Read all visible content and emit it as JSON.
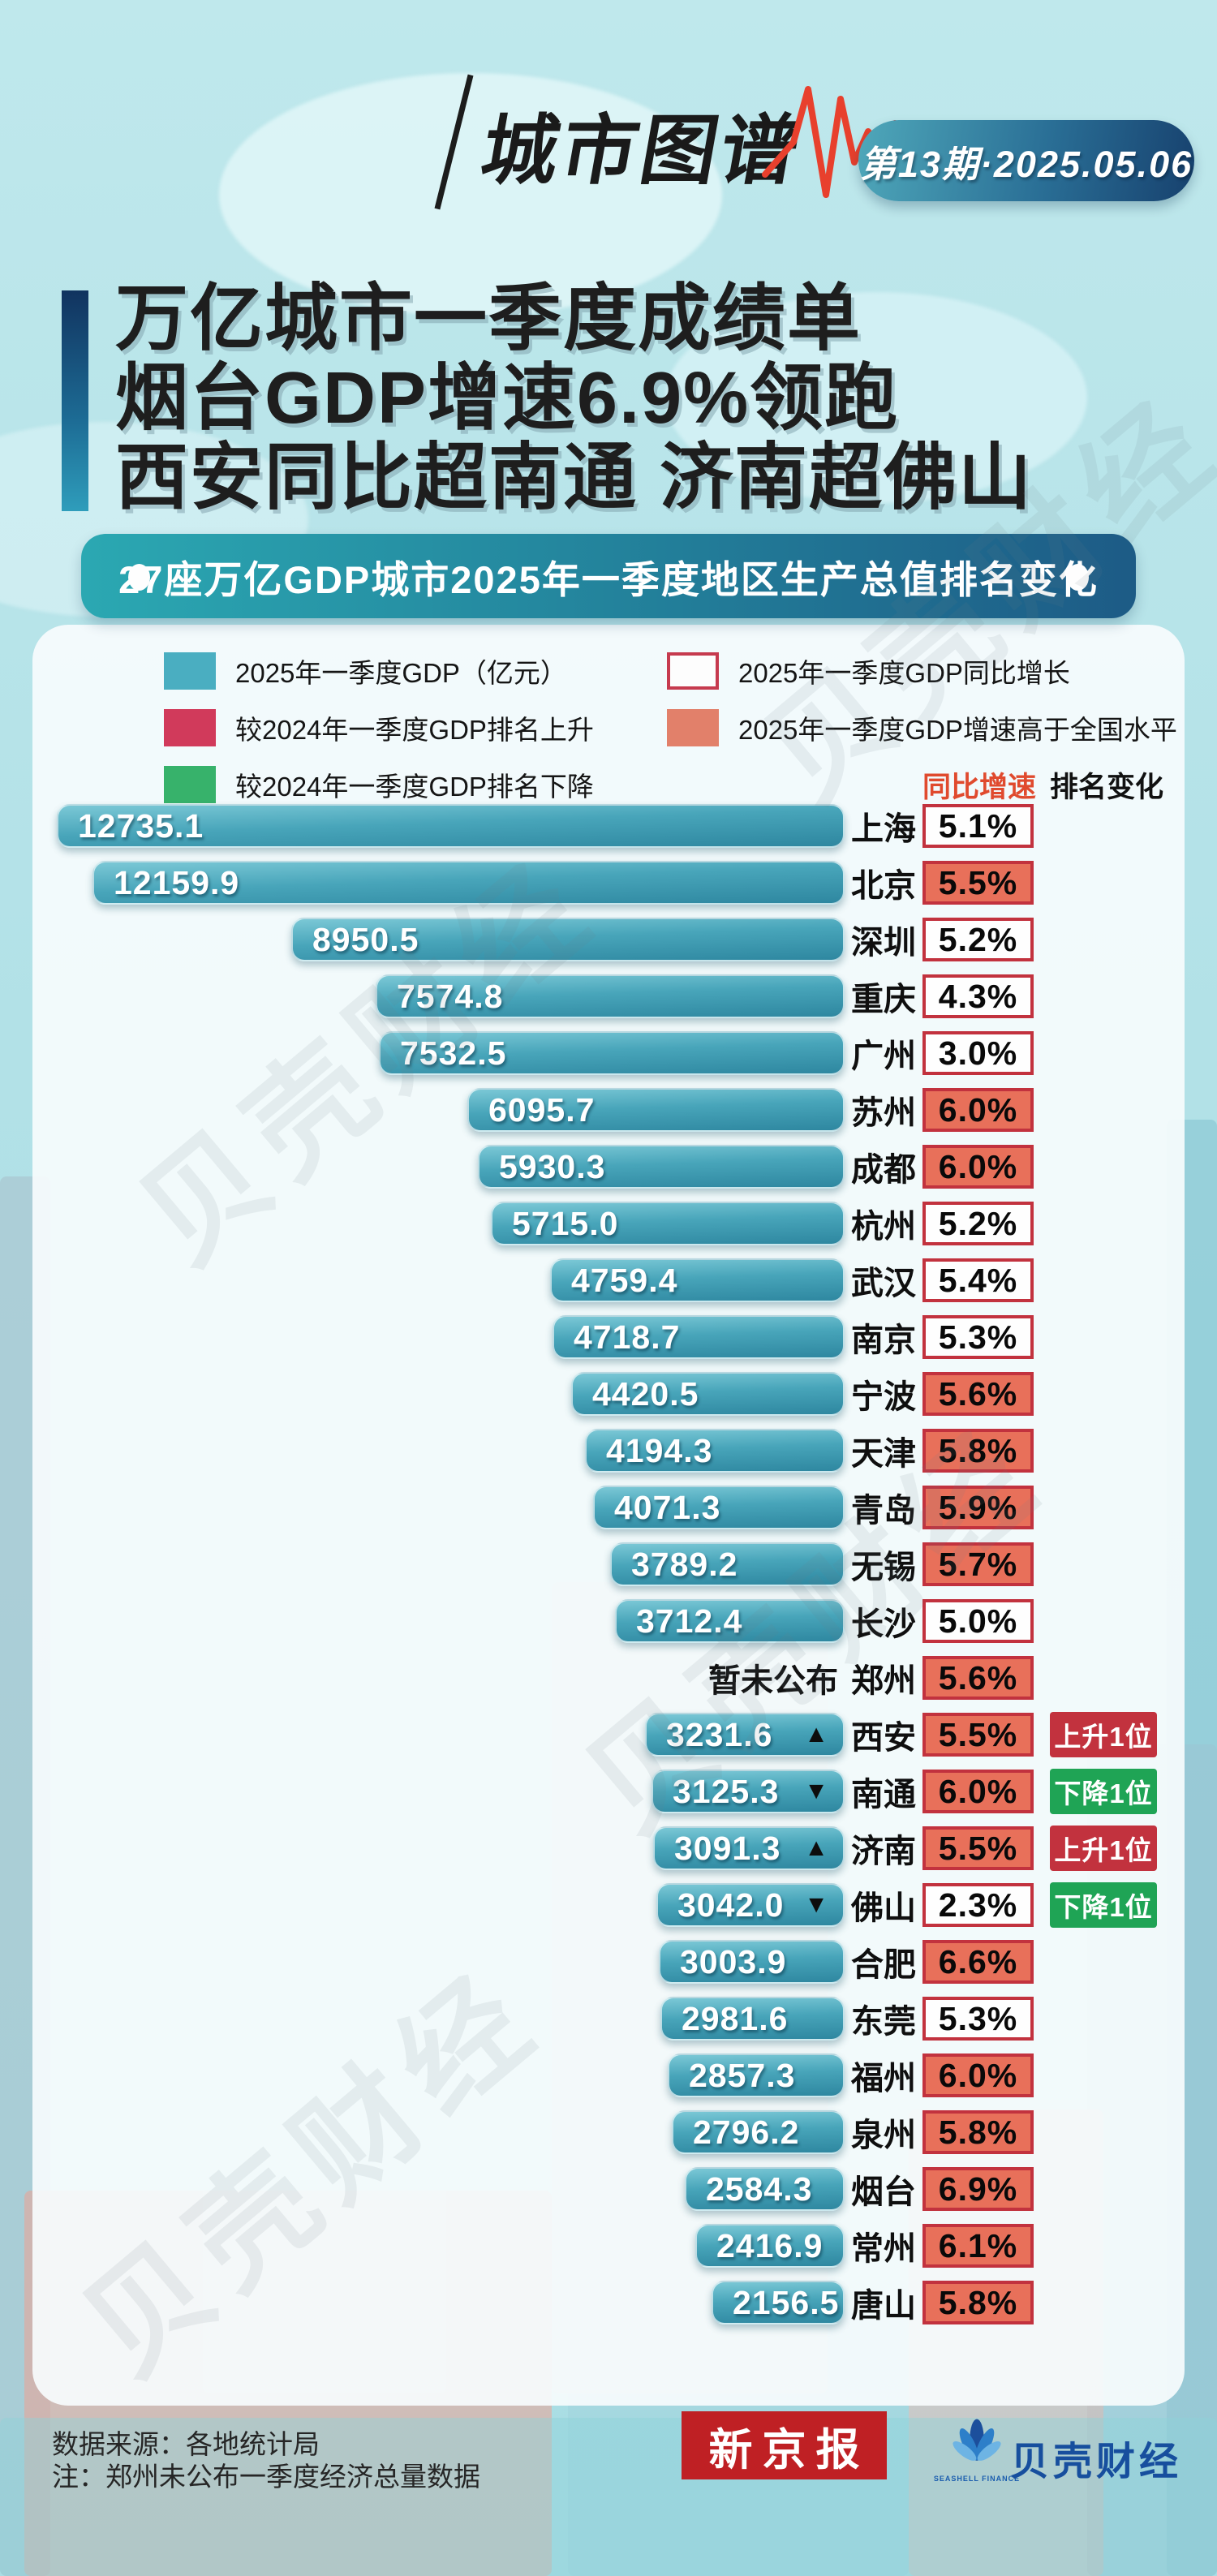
{
  "header": {
    "brand": "城市图谱",
    "issue_badge": "第13期·2025.05.06"
  },
  "title": {
    "line1": "万亿城市一季度成绩单",
    "line2": "烟台GDP增速6.9%领跑",
    "line3": "西安同比超南通 济南超佛山"
  },
  "banner": {
    "text": "27座万亿GDP城市2025年一季度地区生产总值排名变化"
  },
  "legend": {
    "items": [
      {
        "label": "2025年一季度GDP（亿元）",
        "swatch": "teal"
      },
      {
        "label": "较2024年一季度GDP排名上升",
        "swatch": "crimson"
      },
      {
        "label": "较2024年一季度GDP排名下降",
        "swatch": "green"
      },
      {
        "label": "2025年一季度GDP同比增长",
        "swatch": "outline"
      },
      {
        "label": "2025年一季度GDP增速高于全国水平",
        "swatch": "salmon"
      }
    ]
  },
  "columns": {
    "growth_header": "同比增速",
    "rank_header": "排名变化"
  },
  "chart_data": {
    "type": "bar",
    "title": "27座万亿GDP城市2025年一季度地区生产总值排名变化",
    "unit": "亿元",
    "x_max": 12735.1,
    "legend_position": "top",
    "cities": [
      {
        "city": "上海",
        "gdp": 12735.1,
        "gdp_label": "12735.1",
        "growth": "5.1%",
        "above_national": false,
        "rank_arrow": null,
        "rank_badge": null
      },
      {
        "city": "北京",
        "gdp": 12159.9,
        "gdp_label": "12159.9",
        "growth": "5.5%",
        "above_national": true,
        "rank_arrow": null,
        "rank_badge": null
      },
      {
        "city": "深圳",
        "gdp": 8950.5,
        "gdp_label": "8950.5",
        "growth": "5.2%",
        "above_national": false,
        "rank_arrow": null,
        "rank_badge": null
      },
      {
        "city": "重庆",
        "gdp": 7574.8,
        "gdp_label": "7574.8",
        "growth": "4.3%",
        "above_national": false,
        "rank_arrow": null,
        "rank_badge": null
      },
      {
        "city": "广州",
        "gdp": 7532.5,
        "gdp_label": "7532.5",
        "growth": "3.0%",
        "above_national": false,
        "rank_arrow": null,
        "rank_badge": null
      },
      {
        "city": "苏州",
        "gdp": 6095.7,
        "gdp_label": "6095.7",
        "growth": "6.0%",
        "above_national": true,
        "rank_arrow": null,
        "rank_badge": null
      },
      {
        "city": "成都",
        "gdp": 5930.3,
        "gdp_label": "5930.3",
        "growth": "6.0%",
        "above_national": true,
        "rank_arrow": null,
        "rank_badge": null
      },
      {
        "city": "杭州",
        "gdp": 5715.0,
        "gdp_label": "5715.0",
        "growth": "5.2%",
        "above_national": false,
        "rank_arrow": null,
        "rank_badge": null
      },
      {
        "city": "武汉",
        "gdp": 4759.4,
        "gdp_label": "4759.4",
        "growth": "5.4%",
        "above_national": false,
        "rank_arrow": null,
        "rank_badge": null
      },
      {
        "city": "南京",
        "gdp": 4718.7,
        "gdp_label": "4718.7",
        "growth": "5.3%",
        "above_national": false,
        "rank_arrow": null,
        "rank_badge": null
      },
      {
        "city": "宁波",
        "gdp": 4420.5,
        "gdp_label": "4420.5",
        "growth": "5.6%",
        "above_national": true,
        "rank_arrow": null,
        "rank_badge": null
      },
      {
        "city": "天津",
        "gdp": 4194.3,
        "gdp_label": "4194.3",
        "growth": "5.8%",
        "above_national": true,
        "rank_arrow": null,
        "rank_badge": null
      },
      {
        "city": "青岛",
        "gdp": 4071.3,
        "gdp_label": "4071.3",
        "growth": "5.9%",
        "above_national": true,
        "rank_arrow": null,
        "rank_badge": null
      },
      {
        "city": "无锡",
        "gdp": 3789.2,
        "gdp_label": "3789.2",
        "growth": "5.7%",
        "above_national": true,
        "rank_arrow": null,
        "rank_badge": null
      },
      {
        "city": "长沙",
        "gdp": 3712.4,
        "gdp_label": "3712.4",
        "growth": "5.0%",
        "above_national": false,
        "rank_arrow": null,
        "rank_badge": null
      },
      {
        "city": "郑州",
        "gdp": null,
        "gdp_label": "暂未公布",
        "growth": "5.6%",
        "above_national": true,
        "rank_arrow": null,
        "rank_badge": null
      },
      {
        "city": "西安",
        "gdp": 3231.6,
        "gdp_label": "3231.6",
        "growth": "5.5%",
        "above_national": true,
        "rank_arrow": "up",
        "rank_badge": "上升1位"
      },
      {
        "city": "南通",
        "gdp": 3125.3,
        "gdp_label": "3125.3",
        "growth": "6.0%",
        "above_national": true,
        "rank_arrow": "down",
        "rank_badge": "下降1位"
      },
      {
        "city": "济南",
        "gdp": 3091.3,
        "gdp_label": "3091.3",
        "growth": "5.5%",
        "above_national": true,
        "rank_arrow": "up",
        "rank_badge": "上升1位"
      },
      {
        "city": "佛山",
        "gdp": 3042.0,
        "gdp_label": "3042.0",
        "growth": "2.3%",
        "above_national": false,
        "rank_arrow": "down",
        "rank_badge": "下降1位"
      },
      {
        "city": "合肥",
        "gdp": 3003.9,
        "gdp_label": "3003.9",
        "growth": "6.6%",
        "above_national": true,
        "rank_arrow": null,
        "rank_badge": null
      },
      {
        "city": "东莞",
        "gdp": 2981.6,
        "gdp_label": "2981.6",
        "growth": "5.3%",
        "above_national": false,
        "rank_arrow": null,
        "rank_badge": null
      },
      {
        "city": "福州",
        "gdp": 2857.3,
        "gdp_label": "2857.3",
        "growth": "6.0%",
        "above_national": true,
        "rank_arrow": null,
        "rank_badge": null
      },
      {
        "city": "泉州",
        "gdp": 2796.2,
        "gdp_label": "2796.2",
        "growth": "5.8%",
        "above_national": true,
        "rank_arrow": null,
        "rank_badge": null
      },
      {
        "city": "烟台",
        "gdp": 2584.3,
        "gdp_label": "2584.3",
        "growth": "6.9%",
        "above_national": true,
        "rank_arrow": null,
        "rank_badge": null
      },
      {
        "city": "常州",
        "gdp": 2416.9,
        "gdp_label": "2416.9",
        "growth": "6.1%",
        "above_national": true,
        "rank_arrow": null,
        "rank_badge": null
      },
      {
        "city": "唐山",
        "gdp": 2156.5,
        "gdp_label": "2156.5",
        "growth": "5.8%",
        "above_national": true,
        "rank_arrow": null,
        "rank_badge": null
      }
    ]
  },
  "footer": {
    "source": "数据来源：各地统计局",
    "note": "注：郑州未公布一季度经济总量数据",
    "paper_logo": "新京报",
    "finance_logo": "贝壳财经",
    "finance_logo_sub": "SEASHELL FINANCE"
  },
  "watermark_text": "贝壳财经",
  "colors": {
    "background": "#b2e1e7",
    "bar_top": "#7bc8d6",
    "bar_bottom": "#2e87a0",
    "crimson": "#c2323e",
    "green": "#1fa455",
    "salmon": "#e8705a",
    "teal_swatch": "#4aaec1",
    "banner_left": "#2ba8b2",
    "banner_right": "#1d5b86",
    "growth_header_red": "#e04a2e",
    "paper_red": "#bf2024",
    "finance_blue": "#174f9e"
  }
}
